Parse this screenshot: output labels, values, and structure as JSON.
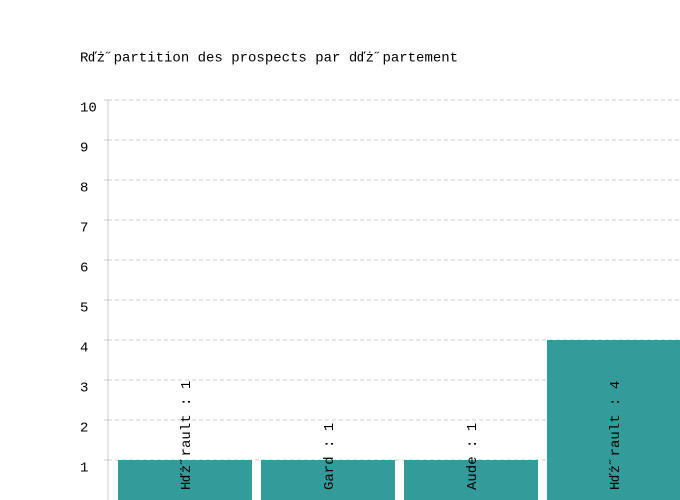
{
  "chart_data": {
    "type": "bar",
    "title": "Rďż˝partition des prospects par dďż˝partement",
    "values": [
      1,
      1,
      1,
      4
    ],
    "value_labels": [
      "Hďż˝rault : 1",
      "Gard : 1",
      "Aude : 1",
      "Hďż˝rault : 4"
    ],
    "color": "#339b99",
    "ylim": [
      0,
      10
    ],
    "yticks": [
      1,
      2,
      3,
      4,
      5,
      6,
      7,
      8,
      9,
      10
    ],
    "grid": true
  }
}
